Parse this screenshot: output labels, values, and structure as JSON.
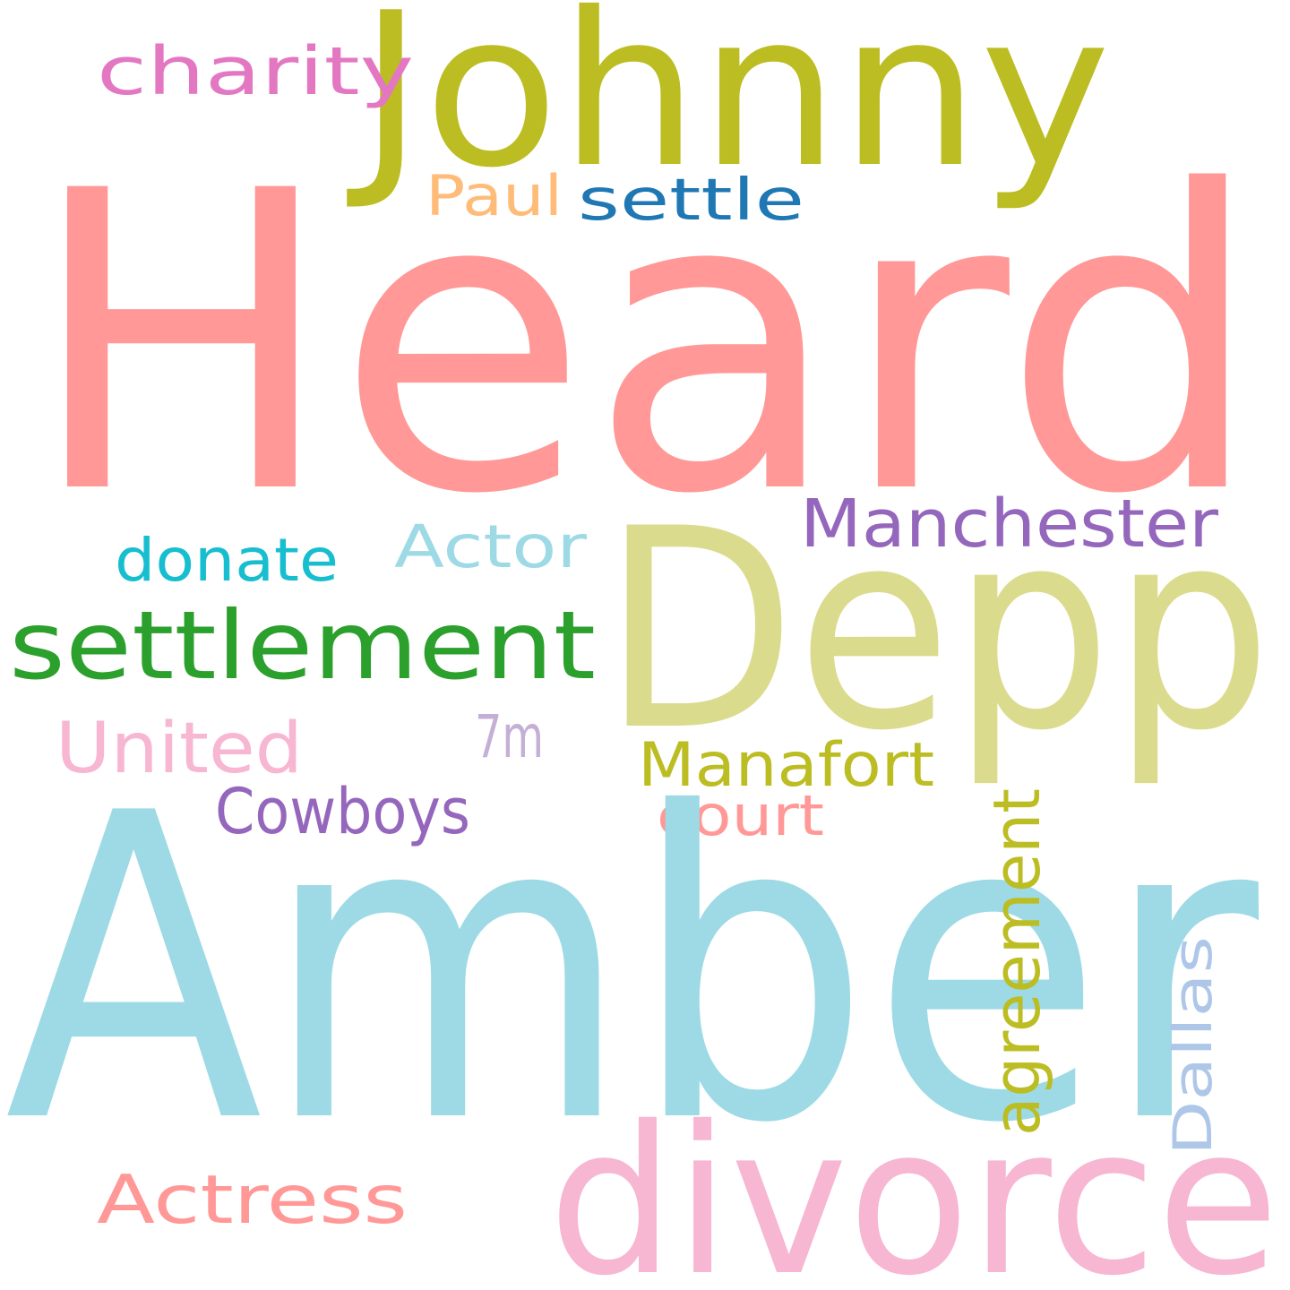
{
  "words": [
    {
      "text": "Heard",
      "color": "#ff9896"
    },
    {
      "text": "Johnny",
      "color": "#bcbd22"
    },
    {
      "text": "charity",
      "color": "#e377c2"
    },
    {
      "text": "Paul",
      "color": "#ffbb78"
    },
    {
      "text": "settle",
      "color": "#1f77b4"
    },
    {
      "text": "Manchester",
      "color": "#9467bd"
    },
    {
      "text": "Actor",
      "color": "#9edae5"
    },
    {
      "text": "donate",
      "color": "#17becf"
    },
    {
      "text": "settlement",
      "color": "#2ca02c"
    },
    {
      "text": "Depp",
      "color": "#dbdb8d"
    },
    {
      "text": "United",
      "color": "#f7b6d2"
    },
    {
      "text": "7m",
      "color": "#c5b0d5"
    },
    {
      "text": "Manafort",
      "color": "#bcbd22"
    },
    {
      "text": "Cowboys",
      "color": "#9467bd"
    },
    {
      "text": "court",
      "color": "#ff9896"
    },
    {
      "text": "Amber",
      "color": "#9edae5"
    },
    {
      "text": "agreement",
      "color": "#bcbd22"
    },
    {
      "text": "Dallas",
      "color": "#aec7e8"
    },
    {
      "text": "Actress",
      "color": "#ff9896"
    },
    {
      "text": "divorce",
      "color": "#f7b6d2"
    }
  ]
}
